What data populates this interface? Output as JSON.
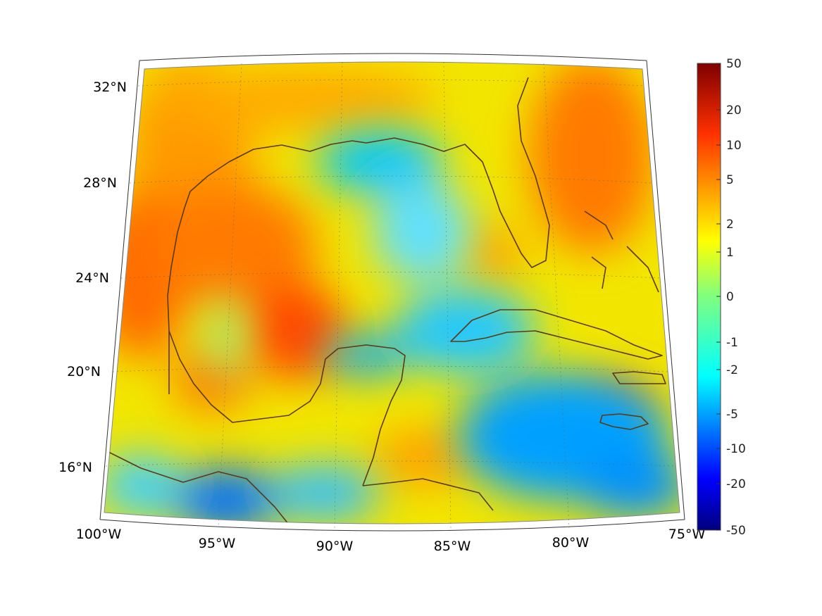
{
  "map": {
    "lon_labels": [
      "100°W",
      "95°W",
      "90°W",
      "85°W",
      "80°W",
      "75°W"
    ],
    "lat_labels": [
      "32°N",
      "28°N",
      "24°N",
      "20°N",
      "16°N"
    ],
    "coastline_color": "#5a3a14",
    "grid_style": "dotted"
  },
  "colorbar": {
    "tick_labels": [
      "50",
      "20",
      "10",
      "5",
      "2",
      "1",
      "0",
      "-1",
      "-2",
      "-5",
      "-10",
      "-20",
      "-50"
    ],
    "colormap": "jet",
    "placement": "right"
  }
}
